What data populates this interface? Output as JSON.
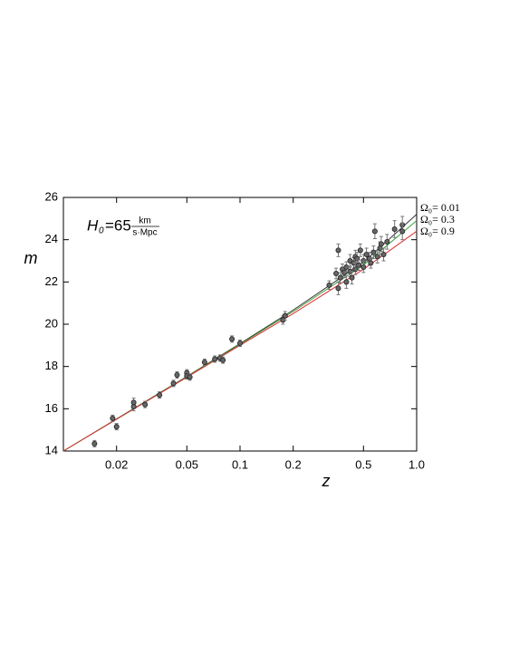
{
  "chart_data": {
    "type": "scatter",
    "xlabel": "z",
    "ylabel": "m",
    "annotation": {
      "lhs": "H",
      "sub": "0",
      "eq": "=65",
      "num": "km",
      "den": "s·Mpc"
    },
    "xscale": "log",
    "xlim": [
      0.01,
      1.0
    ],
    "ylim": [
      14,
      26
    ],
    "xticks": [
      0.02,
      0.05,
      0.1,
      0.2,
      0.5,
      {
        "value": 1,
        "label": "1.0"
      }
    ],
    "yticks": [
      14,
      16,
      18,
      20,
      22,
      24,
      26
    ],
    "points": {
      "color": "#777777",
      "x": [
        0.015,
        0.019,
        0.02,
        0.025,
        0.025,
        0.029,
        0.035,
        0.042,
        0.044,
        0.05,
        0.05,
        0.052,
        0.063,
        0.072,
        0.077,
        0.08,
        0.09,
        0.1,
        0.175,
        0.18,
        0.32,
        0.35,
        0.36,
        0.36,
        0.37,
        0.38,
        0.39,
        0.4,
        0.4,
        0.42,
        0.42,
        0.43,
        0.44,
        0.45,
        0.45,
        0.46,
        0.47,
        0.48,
        0.5,
        0.5,
        0.52,
        0.54,
        0.55,
        0.57,
        0.58,
        0.6,
        0.62,
        0.63,
        0.65,
        0.68,
        0.75,
        0.83,
        0.83
      ],
      "values": [
        14.35,
        15.55,
        15.15,
        16.1,
        16.3,
        16.2,
        16.65,
        17.2,
        17.6,
        17.7,
        17.55,
        17.5,
        18.2,
        18.35,
        18.4,
        18.3,
        19.3,
        19.1,
        20.2,
        20.4,
        21.85,
        22.4,
        23.5,
        21.7,
        22.2,
        22.6,
        22.45,
        22.0,
        22.7,
        22.5,
        23.0,
        22.2,
        22.9,
        23.2,
        22.6,
        23.1,
        22.8,
        23.5,
        23.0,
        22.7,
        23.3,
        23.1,
        22.9,
        23.4,
        24.4,
        23.2,
        23.6,
        23.8,
        23.3,
        23.9,
        24.5,
        24.7,
        24.4
      ],
      "yerr": [
        0.15,
        0.15,
        0.15,
        0.2,
        0.2,
        0.15,
        0.15,
        0.15,
        0.15,
        0.15,
        0.15,
        0.15,
        0.15,
        0.15,
        0.15,
        0.15,
        0.15,
        0.15,
        0.2,
        0.2,
        0.2,
        0.25,
        0.3,
        0.3,
        0.25,
        0.25,
        0.25,
        0.3,
        0.25,
        0.25,
        0.3,
        0.3,
        0.25,
        0.3,
        0.25,
        0.3,
        0.25,
        0.3,
        0.3,
        0.25,
        0.3,
        0.3,
        0.25,
        0.3,
        0.35,
        0.3,
        0.3,
        0.35,
        0.3,
        0.35,
        0.4,
        0.4,
        0.4
      ]
    },
    "series": [
      {
        "name": "Ω₀= 0.01",
        "color": "#333333",
        "x": [
          0.01,
          0.02,
          0.05,
          0.1,
          0.2,
          0.5,
          1.0
        ],
        "values": [
          14.0,
          15.52,
          17.53,
          19.08,
          20.67,
          22.93,
          25.2
        ]
      },
      {
        "name": "Ω₀= 0.3",
        "color": "#3aa03a",
        "x": [
          0.01,
          0.02,
          0.05,
          0.1,
          0.2,
          0.5,
          1.0
        ],
        "values": [
          14.0,
          15.51,
          17.51,
          19.05,
          20.6,
          22.8,
          24.9
        ]
      },
      {
        "name": "Ω₀= 0.9",
        "color": "#e03030",
        "x": [
          0.01,
          0.02,
          0.05,
          0.1,
          0.2,
          0.5,
          1.0
        ],
        "values": [
          14.0,
          15.5,
          17.49,
          19.0,
          20.5,
          22.6,
          24.4
        ]
      }
    ]
  }
}
